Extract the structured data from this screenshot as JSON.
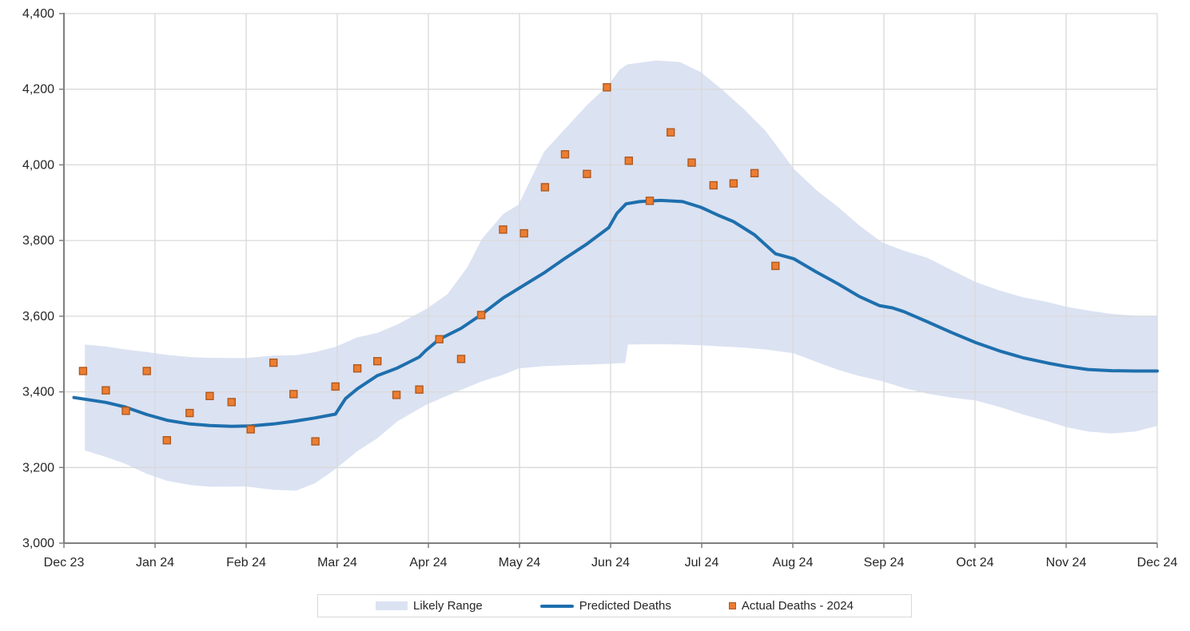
{
  "legend": {
    "items": [
      {
        "label": "Likely Range",
        "swatch": "band"
      },
      {
        "label": "Predicted Deaths",
        "swatch": "line"
      },
      {
        "label": "Actual Deaths - 2024",
        "swatch": "square-marker"
      }
    ]
  },
  "colors": {
    "band": "#dbe2f2",
    "line": "#1e6fad",
    "marker_fill": "#ed7d31",
    "marker_border": "#ae5a21",
    "gridline": "#d9d9d9",
    "axis": "#7f7f7f",
    "tick_text": "#262626",
    "legend_border": "#d9d9d9",
    "background": "#ffffff"
  },
  "chart_data": {
    "type": "line",
    "title": "",
    "grid": "on",
    "legend_position": "bottom",
    "x_axis": {
      "unit": "month",
      "range": [
        0,
        12
      ],
      "tick_labels": [
        "Dec 23",
        "Jan 24",
        "Feb 24",
        "Mar 24",
        "Apr 24",
        "May 24",
        "Jun 24",
        "Jul 24",
        "Aug 24",
        "Sep 24",
        "Oct 24",
        "Nov 24",
        "Dec 24"
      ]
    },
    "y_axis": {
      "min": 3000,
      "max": 4400,
      "step": 200,
      "tick_labels": [
        "3,000",
        "3,200",
        "3,400",
        "3,600",
        "3,800",
        "4,000",
        "4,200",
        "4,400"
      ]
    },
    "series": [
      {
        "name": "Likely Range",
        "type": "area-band",
        "color": "#dbe2f2",
        "points_format": [
          "x_month",
          "low",
          "high"
        ],
        "points": [
          [
            0.23,
            3245,
            3525
          ],
          [
            0.46,
            3228,
            3520
          ],
          [
            0.67,
            3210,
            3512
          ],
          [
            0.91,
            3183,
            3505
          ],
          [
            1.13,
            3165,
            3498
          ],
          [
            1.38,
            3154,
            3492
          ],
          [
            1.6,
            3149,
            3490
          ],
          [
            1.99,
            3150,
            3489
          ],
          [
            2.3,
            3141,
            3496
          ],
          [
            2.55,
            3139,
            3497
          ],
          [
            2.76,
            3159,
            3505
          ],
          [
            2.98,
            3196,
            3519
          ],
          [
            3.22,
            3243,
            3544
          ],
          [
            3.44,
            3277,
            3556
          ],
          [
            3.66,
            3322,
            3578
          ],
          [
            3.97,
            3365,
            3618
          ],
          [
            4.21,
            3390,
            3658
          ],
          [
            4.43,
            3412,
            3730
          ],
          [
            4.59,
            3428,
            3805
          ],
          [
            4.82,
            3445,
            3870
          ],
          [
            4.99,
            3462,
            3895
          ],
          [
            5.27,
            3468,
            4035
          ],
          [
            5.5,
            3470,
            4095
          ],
          [
            5.74,
            3472,
            4158
          ],
          [
            5.98,
            3474,
            4212
          ],
          [
            6.1,
            3476,
            4252
          ],
          [
            6.16,
            3476,
            4262
          ],
          [
            6.19,
            3525,
            4266
          ],
          [
            6.5,
            3526,
            4276
          ],
          [
            6.76,
            3525,
            4272
          ],
          [
            6.99,
            3523,
            4245
          ],
          [
            7.22,
            3520,
            4200
          ],
          [
            7.46,
            3517,
            4148
          ],
          [
            7.7,
            3512,
            4090
          ],
          [
            8.01,
            3502,
            3990
          ],
          [
            8.25,
            3480,
            3935
          ],
          [
            8.5,
            3458,
            3888
          ],
          [
            8.73,
            3442,
            3840
          ],
          [
            8.98,
            3428,
            3795
          ],
          [
            9.22,
            3410,
            3773
          ],
          [
            9.48,
            3395,
            3754
          ],
          [
            9.74,
            3385,
            3722
          ],
          [
            10.01,
            3377,
            3690
          ],
          [
            10.27,
            3360,
            3668
          ],
          [
            10.53,
            3340,
            3650
          ],
          [
            10.8,
            3322,
            3637
          ],
          [
            11.0,
            3307,
            3625
          ],
          [
            11.24,
            3295,
            3615
          ],
          [
            11.5,
            3290,
            3606
          ],
          [
            11.76,
            3295,
            3601
          ],
          [
            12.0,
            3310,
            3600
          ]
        ]
      },
      {
        "name": "Predicted Deaths",
        "type": "line",
        "color": "#1e6fad",
        "points_format": [
          "x_month",
          "y"
        ],
        "points": [
          [
            0.11,
            3385
          ],
          [
            0.46,
            3372
          ],
          [
            0.67,
            3360
          ],
          [
            0.91,
            3340
          ],
          [
            1.13,
            3325
          ],
          [
            1.38,
            3315
          ],
          [
            1.6,
            3311
          ],
          [
            1.84,
            3309
          ],
          [
            2.05,
            3310
          ],
          [
            2.3,
            3315
          ],
          [
            2.52,
            3322
          ],
          [
            2.76,
            3331
          ],
          [
            2.98,
            3341
          ],
          [
            3.09,
            3382
          ],
          [
            3.22,
            3408
          ],
          [
            3.44,
            3443
          ],
          [
            3.66,
            3463
          ],
          [
            3.9,
            3492
          ],
          [
            3.97,
            3509
          ],
          [
            4.12,
            3539
          ],
          [
            4.36,
            3568
          ],
          [
            4.58,
            3604
          ],
          [
            4.82,
            3648
          ],
          [
            5.05,
            3682
          ],
          [
            5.28,
            3716
          ],
          [
            5.5,
            3753
          ],
          [
            5.74,
            3791
          ],
          [
            5.98,
            3834
          ],
          [
            6.07,
            3872
          ],
          [
            6.17,
            3897
          ],
          [
            6.32,
            3903
          ],
          [
            6.55,
            3906
          ],
          [
            6.79,
            3903
          ],
          [
            6.99,
            3888
          ],
          [
            7.2,
            3865
          ],
          [
            7.35,
            3850
          ],
          [
            7.58,
            3815
          ],
          [
            7.81,
            3765
          ],
          [
            8.01,
            3752
          ],
          [
            8.25,
            3718
          ],
          [
            8.5,
            3685
          ],
          [
            8.73,
            3652
          ],
          [
            8.95,
            3628
          ],
          [
            9.09,
            3622
          ],
          [
            9.22,
            3612
          ],
          [
            9.48,
            3585
          ],
          [
            9.74,
            3557
          ],
          [
            10.01,
            3530
          ],
          [
            10.27,
            3508
          ],
          [
            10.53,
            3490
          ],
          [
            10.8,
            3476
          ],
          [
            11.0,
            3467
          ],
          [
            11.24,
            3459
          ],
          [
            11.5,
            3456
          ],
          [
            11.76,
            3455
          ],
          [
            12.0,
            3455
          ]
        ]
      },
      {
        "name": "Actual Deaths - 2024",
        "type": "scatter",
        "marker": "square",
        "color": "#ed7d31",
        "points_format": [
          "x_month",
          "y"
        ],
        "points": [
          [
            0.21,
            3455
          ],
          [
            0.46,
            3404
          ],
          [
            0.68,
            3350
          ],
          [
            0.91,
            3455
          ],
          [
            1.13,
            3272
          ],
          [
            1.38,
            3344
          ],
          [
            1.6,
            3389
          ],
          [
            1.84,
            3373
          ],
          [
            2.05,
            3301
          ],
          [
            2.3,
            3477
          ],
          [
            2.52,
            3394
          ],
          [
            2.76,
            3269
          ],
          [
            2.98,
            3414
          ],
          [
            3.22,
            3462
          ],
          [
            3.44,
            3481
          ],
          [
            3.65,
            3392
          ],
          [
            3.9,
            3406
          ],
          [
            4.12,
            3539
          ],
          [
            4.36,
            3487
          ],
          [
            4.58,
            3603
          ],
          [
            4.82,
            3829
          ],
          [
            5.05,
            3819
          ],
          [
            5.28,
            3941
          ],
          [
            5.5,
            4028
          ],
          [
            5.74,
            3976
          ],
          [
            5.96,
            4205
          ],
          [
            6.2,
            4011
          ],
          [
            6.43,
            3905
          ],
          [
            6.66,
            4086
          ],
          [
            6.89,
            4006
          ],
          [
            7.13,
            3946
          ],
          [
            7.35,
            3951
          ],
          [
            7.58,
            3978
          ],
          [
            7.81,
            3733
          ]
        ]
      }
    ]
  }
}
